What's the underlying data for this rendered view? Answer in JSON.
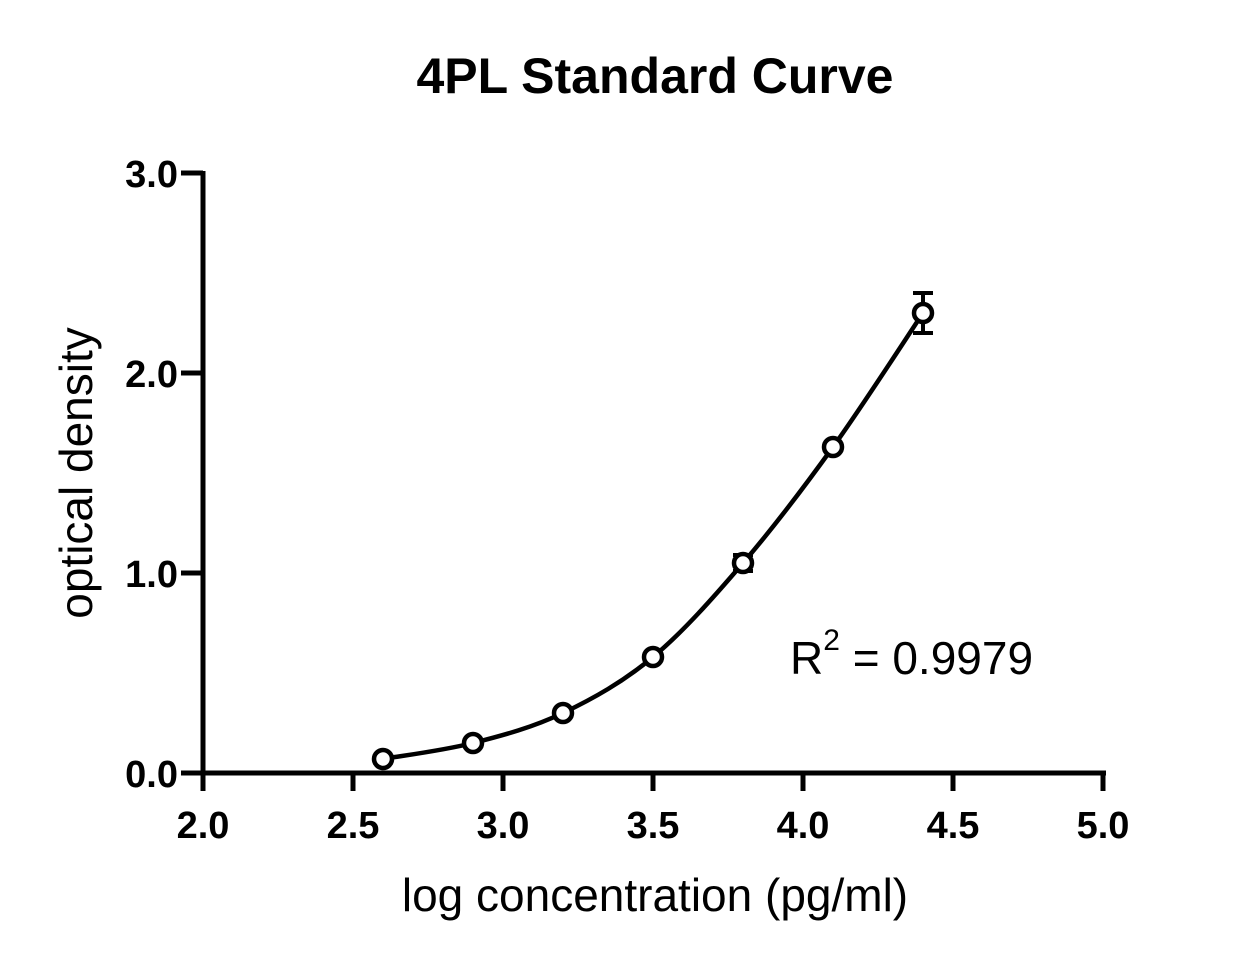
{
  "chart_data": {
    "type": "scatter",
    "title": "4PL Standard Curve",
    "xlabel": "log concentration (pg/ml)",
    "ylabel": "optical density",
    "xlim": [
      2.0,
      5.0
    ],
    "ylim": [
      0.0,
      3.0
    ],
    "x_ticks": [
      "2.0",
      "2.5",
      "3.0",
      "3.5",
      "4.0",
      "4.5",
      "5.0"
    ],
    "y_ticks": [
      "0.0",
      "1.0",
      "2.0",
      "3.0"
    ],
    "grid": false,
    "series": [
      {
        "x": [
          2.6,
          2.9,
          3.2,
          3.5,
          3.8,
          4.1,
          4.4
        ],
        "y": [
          0.07,
          0.15,
          0.3,
          0.58,
          1.05,
          1.63,
          2.3
        ],
        "y_err": [
          0.0,
          0.0,
          0.0,
          0.0,
          0.04,
          0.0,
          0.1
        ]
      }
    ],
    "fit": {
      "model": "4PL",
      "x_range": [
        2.6,
        4.4
      ]
    },
    "annotation": {
      "r_label": "R",
      "superscript": "2",
      "value_text": " = 0.9979"
    }
  }
}
